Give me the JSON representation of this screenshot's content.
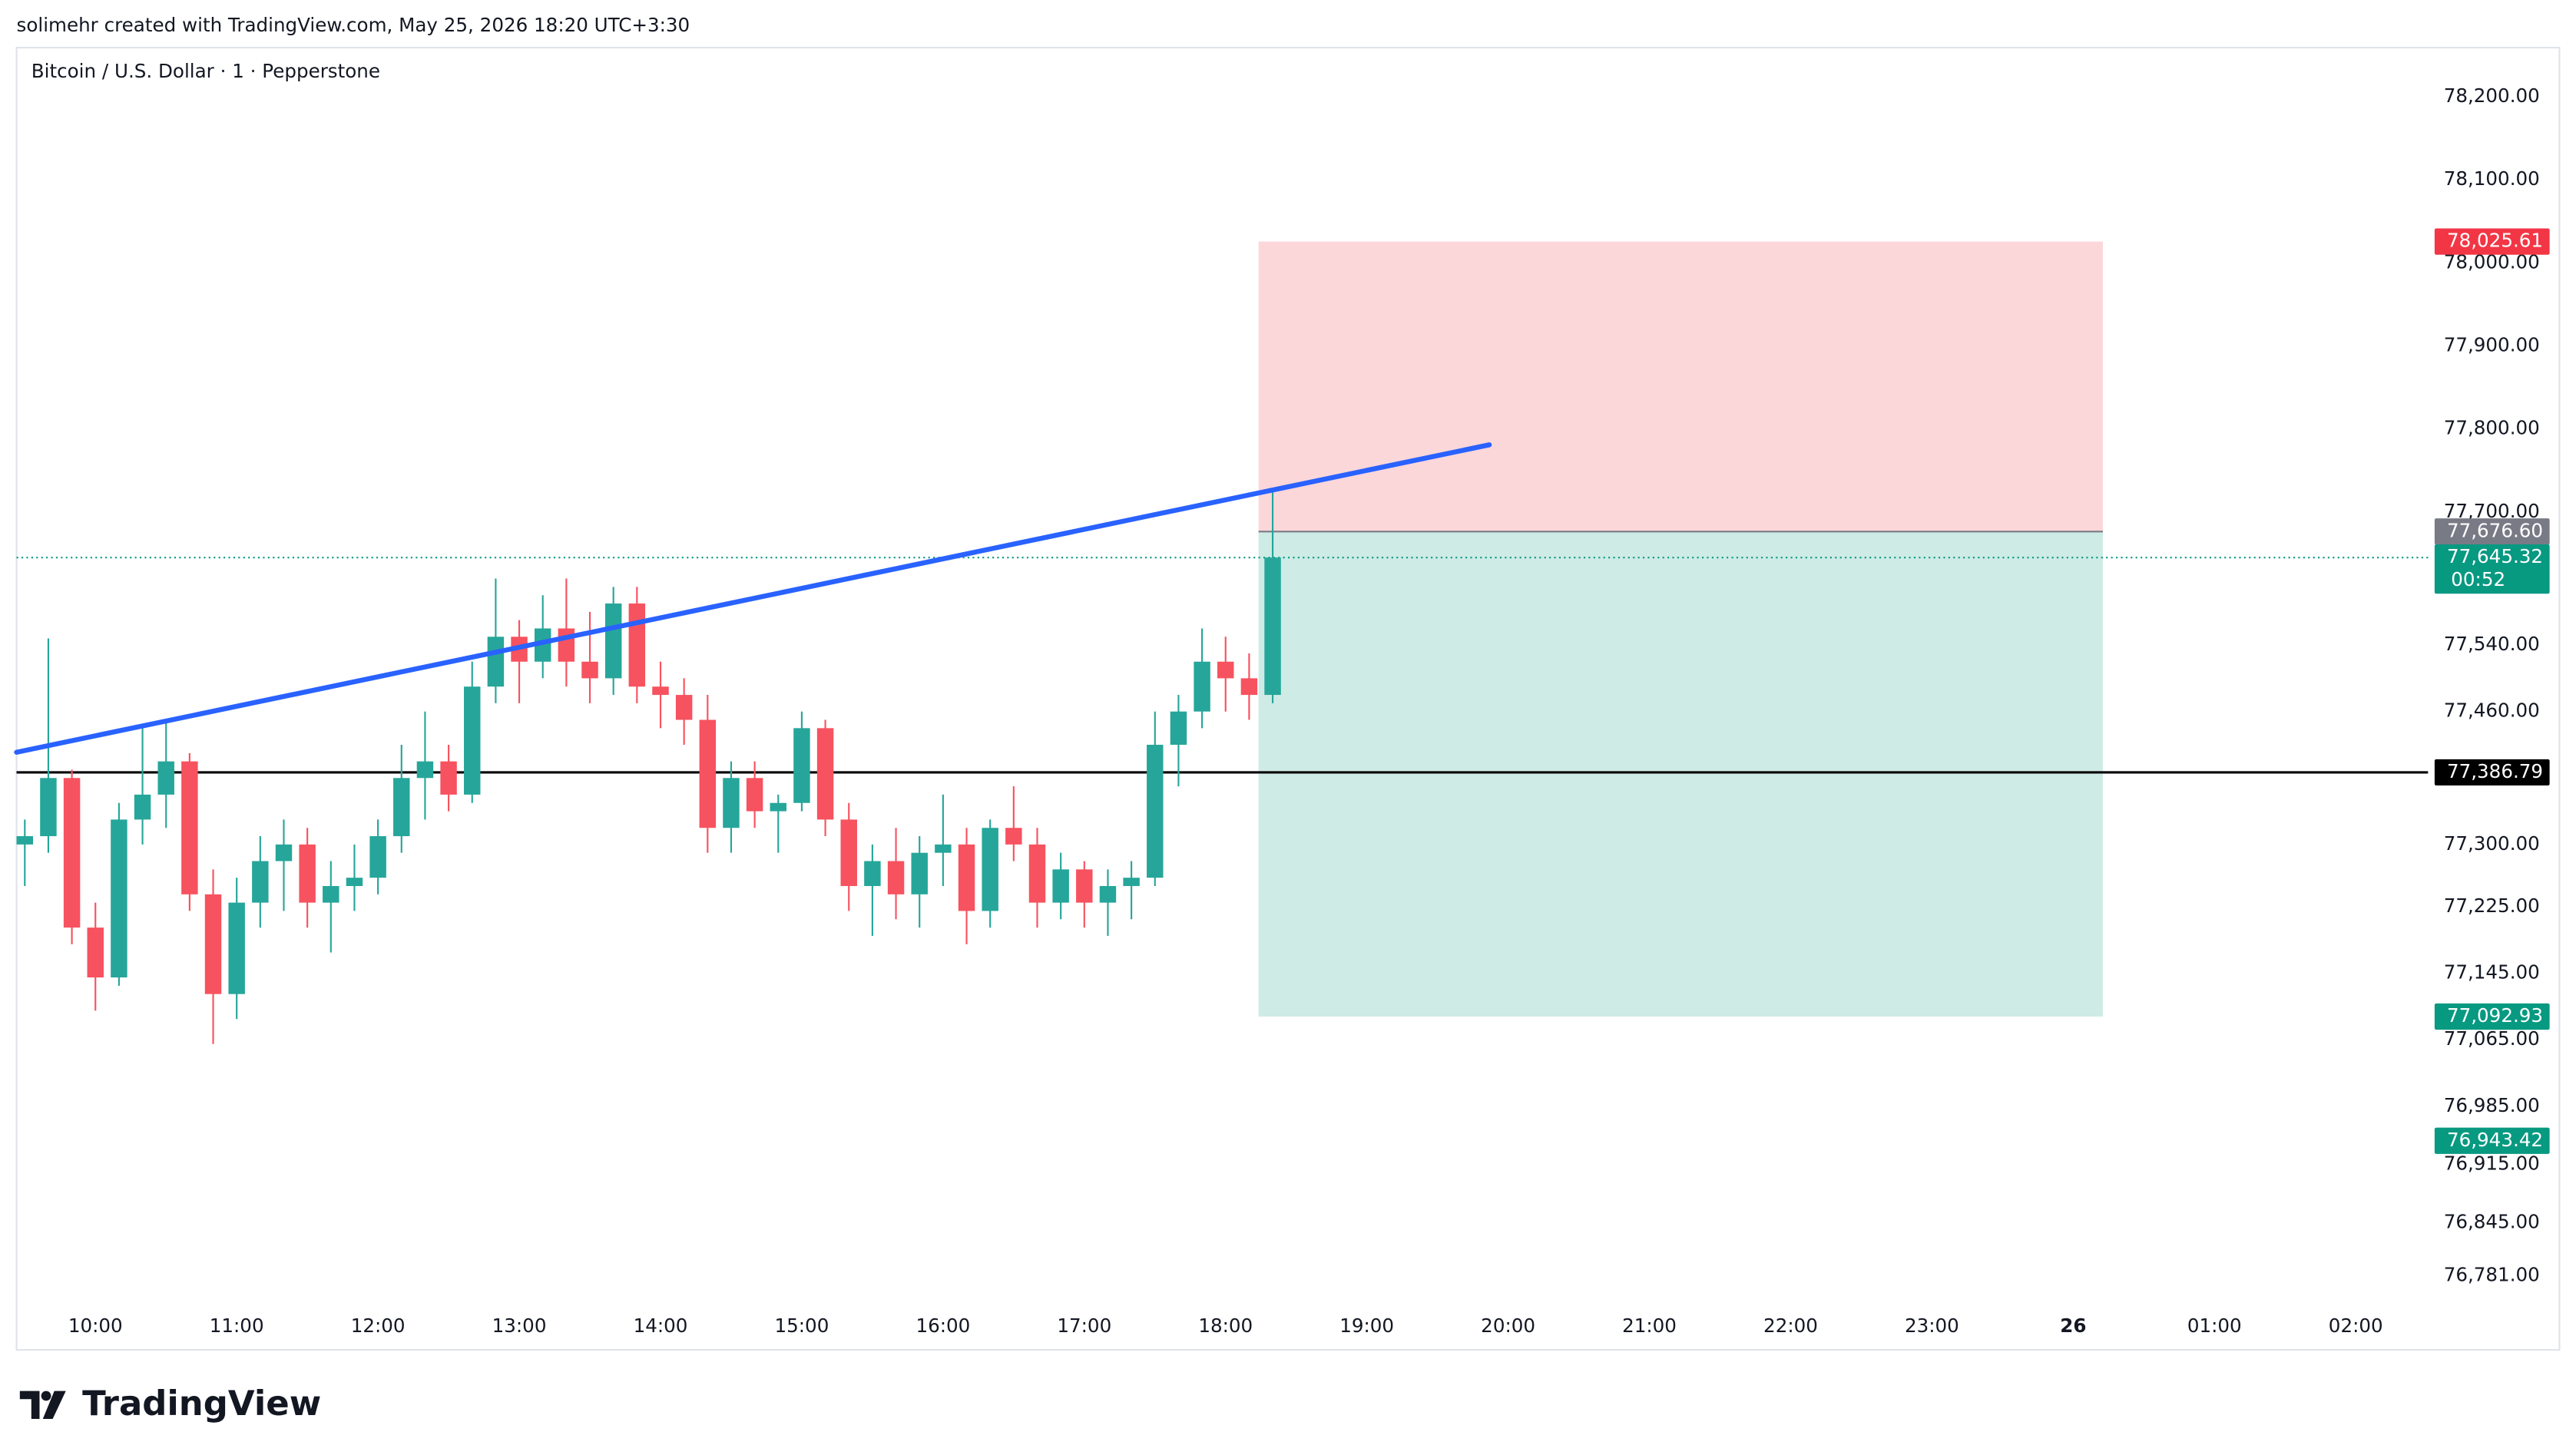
{
  "header": {
    "text": "solimehr created with TradingView.com, May 25, 2026 18:20 UTC+3:30",
    "logo": "TradingView"
  },
  "chart_data": {
    "type": "candlestick",
    "title": "Bitcoin / U.S. Dollar · 1 · Pepperstone",
    "x": [
      570,
      580,
      590,
      600,
      610,
      620,
      630,
      640,
      650,
      660,
      670,
      680,
      690,
      700,
      710,
      720,
      730,
      740,
      750,
      760,
      770,
      780,
      790,
      800,
      810,
      820,
      830,
      840,
      850,
      860,
      870,
      880,
      890,
      900,
      910,
      920,
      930,
      940,
      950,
      960,
      970,
      980,
      990,
      1000,
      1010,
      1020,
      1030,
      1040,
      1050,
      1060,
      1070,
      1080,
      1090,
      1100
    ],
    "open": [
      77300,
      77310,
      77380,
      77200,
      77140,
      77330,
      77360,
      77400,
      77240,
      77120,
      77230,
      77280,
      77300,
      77230,
      77250,
      77260,
      77310,
      77380,
      77400,
      77360,
      77490,
      77550,
      77520,
      77560,
      77520,
      77500,
      77590,
      77490,
      77480,
      77450,
      77320,
      77380,
      77340,
      77350,
      77440,
      77330,
      77250,
      77280,
      77240,
      77290,
      77300,
      77220,
      77320,
      77300,
      77230,
      77270,
      77230,
      77250,
      77260,
      77420,
      77460,
      77520,
      77500,
      77480
    ],
    "high": [
      77330,
      77548,
      77390,
      77230,
      77350,
      77440,
      77450,
      77410,
      77270,
      77260,
      77310,
      77330,
      77320,
      77280,
      77300,
      77330,
      77420,
      77460,
      77420,
      77520,
      77620,
      77570,
      77600,
      77620,
      77580,
      77610,
      77610,
      77520,
      77500,
      77480,
      77400,
      77400,
      77360,
      77460,
      77450,
      77350,
      77300,
      77320,
      77310,
      77360,
      77320,
      77330,
      77370,
      77320,
      77290,
      77280,
      77270,
      77280,
      77460,
      77480,
      77560,
      77550,
      77530,
      77724
    ],
    "low": [
      77250,
      77290,
      77180,
      77100,
      77130,
      77300,
      77320,
      77220,
      77060,
      77090,
      77200,
      77220,
      77200,
      77170,
      77220,
      77240,
      77290,
      77330,
      77340,
      77350,
      77470,
      77470,
      77500,
      77490,
      77470,
      77480,
      77470,
      77440,
      77420,
      77290,
      77290,
      77320,
      77290,
      77340,
      77310,
      77220,
      77190,
      77210,
      77200,
      77250,
      77180,
      77200,
      77280,
      77200,
      77210,
      77200,
      77190,
      77210,
      77250,
      77370,
      77440,
      77460,
      77450,
      77470
    ],
    "close": [
      77310,
      77380,
      77200,
      77140,
      77330,
      77360,
      77400,
      77240,
      77120,
      77230,
      77280,
      77300,
      77230,
      77250,
      77260,
      77310,
      77380,
      77400,
      77360,
      77490,
      77550,
      77520,
      77560,
      77520,
      77500,
      77590,
      77490,
      77480,
      77450,
      77320,
      77380,
      77340,
      77350,
      77440,
      77330,
      77250,
      77280,
      77240,
      77290,
      77300,
      77220,
      77320,
      77300,
      77230,
      77270,
      77230,
      77250,
      77260,
      77420,
      77460,
      77520,
      77500,
      77480,
      77645.32
    ],
    "up_color": "#26a69a",
    "down_color": "#f7525f",
    "xlim": [
      566.5,
      1590.7
    ],
    "xticks": [
      {
        "value": 600,
        "label": "10:00"
      },
      {
        "value": 660,
        "label": "11:00"
      },
      {
        "value": 720,
        "label": "12:00"
      },
      {
        "value": 780,
        "label": "13:00"
      },
      {
        "value": 840,
        "label": "14:00"
      },
      {
        "value": 900,
        "label": "15:00"
      },
      {
        "value": 960,
        "label": "16:00"
      },
      {
        "value": 1020,
        "label": "17:00"
      },
      {
        "value": 1080,
        "label": "18:00"
      },
      {
        "value": 1140,
        "label": "19:00"
      },
      {
        "value": 1200,
        "label": "20:00"
      },
      {
        "value": 1260,
        "label": "21:00"
      },
      {
        "value": 1320,
        "label": "22:00"
      },
      {
        "value": 1380,
        "label": "23:00"
      },
      {
        "value": 1440,
        "label": "26"
      },
      {
        "value": 1500,
        "label": "01:00"
      },
      {
        "value": 1560,
        "label": "02:00"
      }
    ],
    "ylim": [
      76755,
      78257
    ],
    "yticks": [
      {
        "value": 78200,
        "label": "78,200.00"
      },
      {
        "value": 78100,
        "label": "78,100.00"
      },
      {
        "value": 78000,
        "label": "78,000.00"
      },
      {
        "value": 77900,
        "label": "77,900.00"
      },
      {
        "value": 77800,
        "label": "77,800.00"
      },
      {
        "value": 77700,
        "label": "77,700.00"
      },
      {
        "value": 77540,
        "label": "77,540.00"
      },
      {
        "value": 77460,
        "label": "77,460.00"
      },
      {
        "value": 77300,
        "label": "77,300.00"
      },
      {
        "value": 77225,
        "label": "77,225.00"
      },
      {
        "value": 77145,
        "label": "77,145.00"
      },
      {
        "value": 77065,
        "label": "77,065.00"
      },
      {
        "value": 76985,
        "label": "76,985.00"
      },
      {
        "value": 76915,
        "label": "76,915.00"
      },
      {
        "value": 76845,
        "label": "76,845.00"
      },
      {
        "value": 76781,
        "label": "76,781.00"
      }
    ],
    "grid": false,
    "trend_line": {
      "x": [
        566.5,
        1192
      ],
      "y": [
        77411,
        77781
      ],
      "color": "#2962ff"
    },
    "horizontal_line": {
      "value": 77386.79,
      "label": "77,386.79",
      "color": "#000000"
    },
    "last_price": {
      "value": 77645.32,
      "label": "77,645.32",
      "countdown": "00:52",
      "color": "#089981"
    },
    "position": {
      "x": [
        1094,
        1452.6
      ],
      "stop": {
        "value": 78025.61,
        "label": "78,025.61",
        "color": "#f23645"
      },
      "entry": {
        "value": 77676.6,
        "label": "77,676.60",
        "color": "#787b86"
      },
      "target": {
        "value": 77092.93,
        "label": "77,092.93",
        "color": "#089981"
      }
    },
    "extra_badge": {
      "value": 76943.42,
      "label": "76,943.42",
      "color": "#089981"
    }
  }
}
